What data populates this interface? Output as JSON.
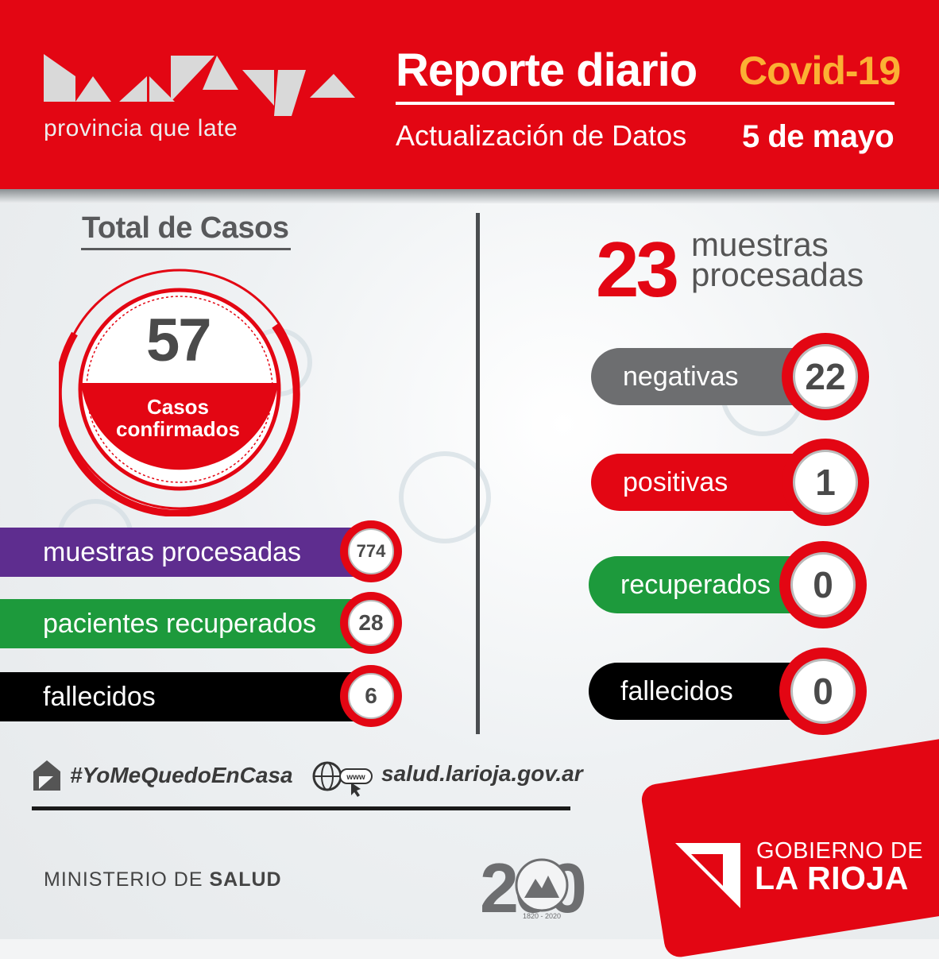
{
  "header": {
    "logo_tagline": "provincia que late",
    "title": "Reporte diario",
    "tag": "Covid-19",
    "subtitle": "Actualización de Datos",
    "date": "5 de mayo"
  },
  "total": {
    "title": "Total de Casos",
    "confirmed_value": "57",
    "confirmed_label_1": "Casos",
    "confirmed_label_2": "confirmados",
    "stats": [
      {
        "label": "muestras procesadas",
        "value": "774",
        "color": "#5e2d8f"
      },
      {
        "label": "pacientes recuperados",
        "value": "28",
        "color": "#1d9a3c"
      },
      {
        "label": "fallecidos",
        "value": "6",
        "color": "#000000"
      }
    ]
  },
  "daily": {
    "samples_value": "23",
    "samples_label_1": "muestras",
    "samples_label_2": "procesadas",
    "items": [
      {
        "label": "negativas",
        "value": "22",
        "color": "#6d6e70"
      },
      {
        "label": "positivas",
        "value": "1",
        "color": "#e30613"
      },
      {
        "label": "recuperados",
        "value": "0",
        "color": "#1d9a3c"
      },
      {
        "label": "fallecidos",
        "value": "0",
        "color": "#000000"
      }
    ]
  },
  "footer": {
    "hashtag": "#YoMeQuedoEnCasa",
    "website": "salud.larioja.gov.ar",
    "ministry_prefix": "MINISTERIO DE ",
    "ministry_bold": "SALUD",
    "gov_line1": "GOBIERNO DE",
    "gov_line2": "LA RIOJA",
    "www_icon_text": "www",
    "bicentennial_digits": "200",
    "bicentennial_years": "1820 - 2020"
  },
  "colors": {
    "brand_red": "#e30613",
    "accent_orange": "#fbb034"
  },
  "icons": [
    "house-icon",
    "globe-icon",
    "cursor-icon",
    "la-rioja-logo",
    "gobierno-logo",
    "bicentenario-logo"
  ]
}
